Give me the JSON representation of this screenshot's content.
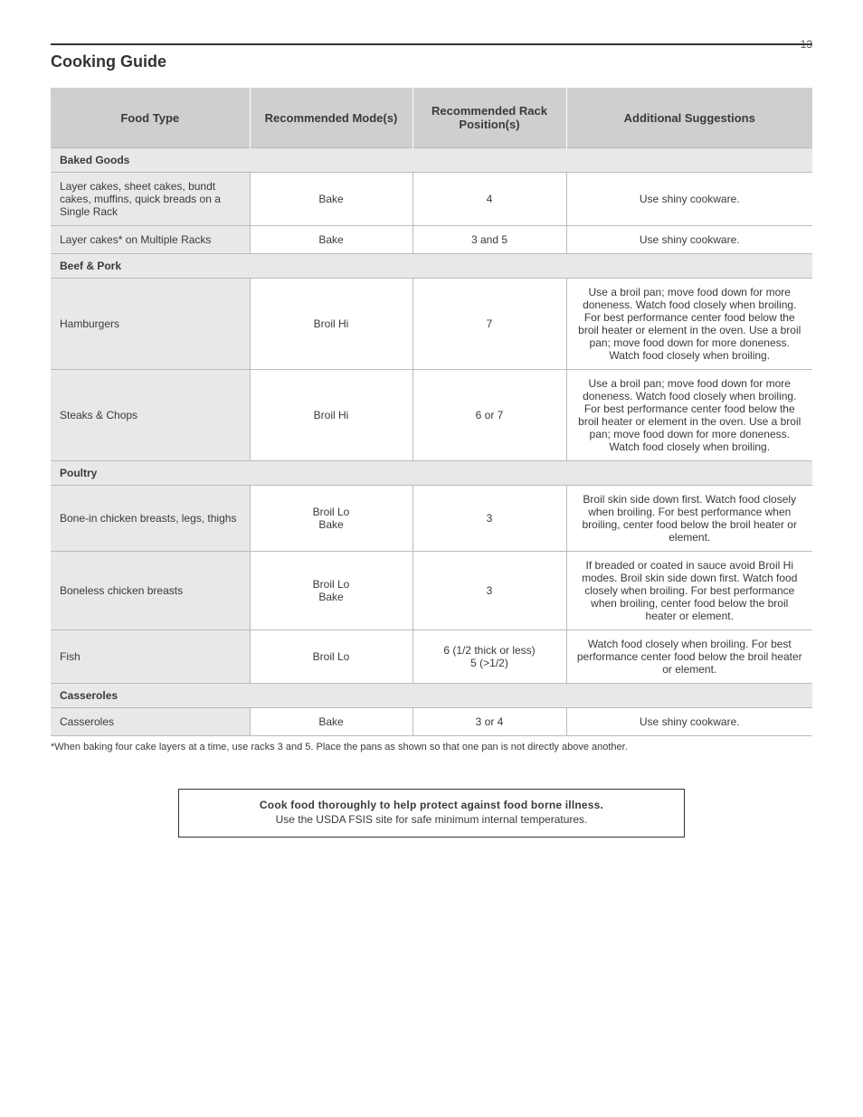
{
  "page_number": "13",
  "heading": "Cooking Guide",
  "tips": {
    "line1": "Cook food thoroughly to help protect against food borne illness.",
    "line2": "Use the USDA FSIS site for safe minimum internal temperatures."
  },
  "table": {
    "columns": [
      "Food Type",
      "Recommended Mode(s)",
      "Recommended Rack Position(s)",
      "Additional Suggestions"
    ],
    "sections": [
      {
        "title": "Baked Goods",
        "rows": [
          {
            "food": "Layer cakes, sheet cakes, bundt cakes, muffins, quick breads on a Single Rack",
            "mode": "Bake",
            "rack": "4",
            "sugg": "Use shiny cookware."
          },
          {
            "food": "Layer cakes* on Multiple Racks",
            "mode": "Bake",
            "rack": "3 and 5",
            "sugg": "Use shiny cookware."
          }
        ]
      },
      {
        "title": "Beef & Pork",
        "rows": [
          {
            "food": "Hamburgers",
            "mode": "Broil Hi",
            "rack": "7",
            "sugg": "Use a broil pan; move food down for more doneness. Watch food closely when broiling. For best performance center food below the broil heater or element in the oven. Use a broil pan; move food down for more doneness. Watch food closely when broiling."
          },
          {
            "food": "Steaks & Chops",
            "mode": "Broil Hi",
            "rack": "6 or 7",
            "sugg": "Use a broil pan; move food down for more doneness. Watch food closely when broiling. For best performance center food below the broil heater or element in the oven. Use a broil pan; move food down for more doneness. Watch food closely when broiling."
          }
        ]
      },
      {
        "title": "Poultry",
        "rows": [
          {
            "food": "Bone-in chicken breasts, legs, thighs",
            "mode": [
              "Broil Lo",
              "Bake"
            ],
            "rack": "3",
            "sugg": "Broil skin side down first. Watch food closely when broiling. For best performance when broiling, center food below the broil heater or element."
          },
          {
            "food": "Boneless chicken breasts",
            "mode": [
              "Broil Lo",
              "Bake"
            ],
            "rack": "3",
            "sugg": "If breaded or coated in sauce avoid Broil Hi modes. Broil skin side down first. Watch food closely when broiling. For best performance when broiling, center food below the broil heater or element."
          },
          {
            "food": "Fish",
            "mode": "Broil Lo",
            "rack": "6 (1/2 thick or less)\n5 (>1/2)",
            "sugg": "Watch food closely when broiling. For best performance center food below the broil heater or element."
          }
        ]
      },
      {
        "title": "Casseroles",
        "rows": [
          {
            "food": "Casseroles",
            "mode": "Bake",
            "rack": "3 or 4",
            "sugg": "Use shiny cookware."
          }
        ]
      }
    ],
    "footnote": "*When baking four cake layers at a time, use racks 3 and 5. Place the pans as shown so that one pan is not directly above another."
  },
  "colors": {
    "rule": "#333333",
    "header_bg": "#cfcfcf",
    "section_bg": "#e8e8e8",
    "border": "#bbbbbb",
    "text": "#3a3a3a"
  }
}
